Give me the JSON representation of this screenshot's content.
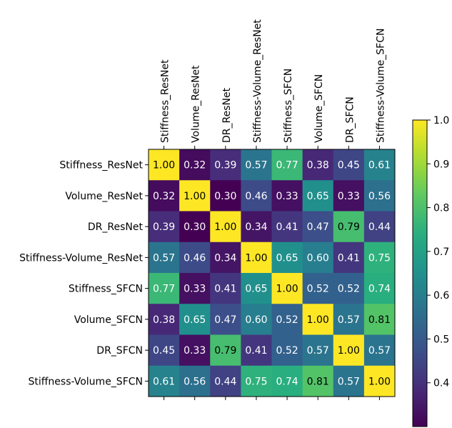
{
  "chart_data": {
    "type": "heatmap",
    "title": "",
    "xlabel": "",
    "ylabel": "",
    "x_labels": [
      "Stiffness_ResNet",
      "Volume_ResNet",
      "DR_ResNet",
      "Stiffness-Volume_ResNet",
      "Stiffness_SFCN",
      "Volume_SFCN",
      "DR_SFCN",
      "Stiffness-Volume_SFCN"
    ],
    "y_labels": [
      "Stiffness_ResNet",
      "Volume_ResNet",
      "DR_ResNet",
      "Stiffness-Volume_ResNet",
      "Stiffness_SFCN",
      "Volume_SFCN",
      "DR_SFCN",
      "Stiffness-Volume_SFCN"
    ],
    "values": [
      [
        1.0,
        0.32,
        0.39,
        0.57,
        0.77,
        0.38,
        0.45,
        0.61
      ],
      [
        0.32,
        1.0,
        0.3,
        0.46,
        0.33,
        0.65,
        0.33,
        0.56
      ],
      [
        0.39,
        0.3,
        1.0,
        0.34,
        0.41,
        0.47,
        0.79,
        0.44
      ],
      [
        0.57,
        0.46,
        0.34,
        1.0,
        0.65,
        0.6,
        0.41,
        0.75
      ],
      [
        0.77,
        0.33,
        0.41,
        0.65,
        1.0,
        0.52,
        0.52,
        0.74
      ],
      [
        0.38,
        0.65,
        0.47,
        0.6,
        0.52,
        1.0,
        0.57,
        0.81
      ],
      [
        0.45,
        0.33,
        0.79,
        0.41,
        0.52,
        0.57,
        1.0,
        0.57
      ],
      [
        0.61,
        0.56,
        0.44,
        0.75,
        0.74,
        0.81,
        0.57,
        1.0
      ]
    ],
    "value_format": "2 decimals",
    "colormap": "viridis",
    "vmin": 0.3,
    "vmax": 1.0,
    "colorbar_ticks": [
      "0.4",
      "0.5",
      "0.6",
      "0.7",
      "0.8",
      "0.9",
      "1.0"
    ],
    "x_label_position": "top",
    "grid": false
  }
}
